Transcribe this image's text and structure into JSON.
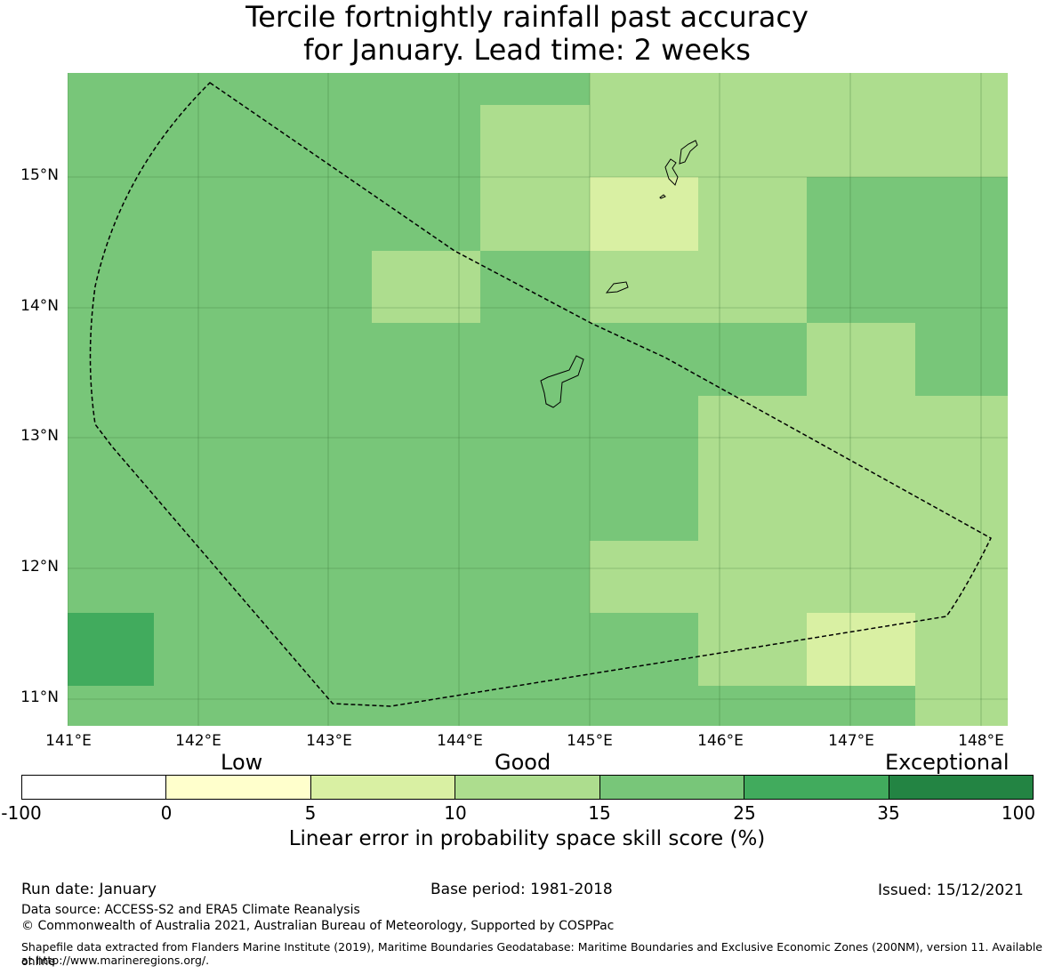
{
  "title": {
    "line1": "Tercile fortnightly rainfall past accuracy",
    "line2": "for January. Lead time: 2 weeks"
  },
  "map": {
    "lat_labels": [
      "15°N",
      "14°N",
      "13°N",
      "12°N",
      "11°N"
    ],
    "lon_labels": [
      "141°E",
      "142°E",
      "143°E",
      "144°E",
      "145°E",
      "146°E",
      "147°E",
      "148°E"
    ],
    "colors": {
      "skill_5_10": "#d9f0a3",
      "skill_10_15": "#addd8e",
      "skill_15_25": "#78c679",
      "skill_25_35": "#41ab5d"
    }
  },
  "colorbar": {
    "categories": {
      "low": "Low",
      "good": "Good",
      "exceptional": "Exceptional"
    },
    "ticks": [
      "-100",
      "0",
      "5",
      "10",
      "15",
      "25",
      "35",
      "100"
    ],
    "colors": [
      "#ffffff",
      "#ffffcc",
      "#d9f0a3",
      "#addd8e",
      "#78c679",
      "#41ab5d",
      "#238443"
    ],
    "label": "Linear error in probability space skill score (%)"
  },
  "footer": {
    "run_date": "Run date: January",
    "base_period": "Base period: 1981-2018",
    "issued": "Issued: 15/12/2021",
    "data_source": "Data source: ACCESS-S2 and ERA5 Climate Reanalysis",
    "copyright": "© Commonwealth of Australia 2021, Australian Bureau of Meteorology, Supported by COSPPac",
    "shapefile_line1": "Shapefile data extracted from Flanders Marine Institute (2019), Maritime Boundaries Geodatabase: Maritime Boundaries and Exclusive Economic Zones (200NM), version 11. Available online",
    "shapefile_line2": "at http://www.marineregions.org/."
  }
}
